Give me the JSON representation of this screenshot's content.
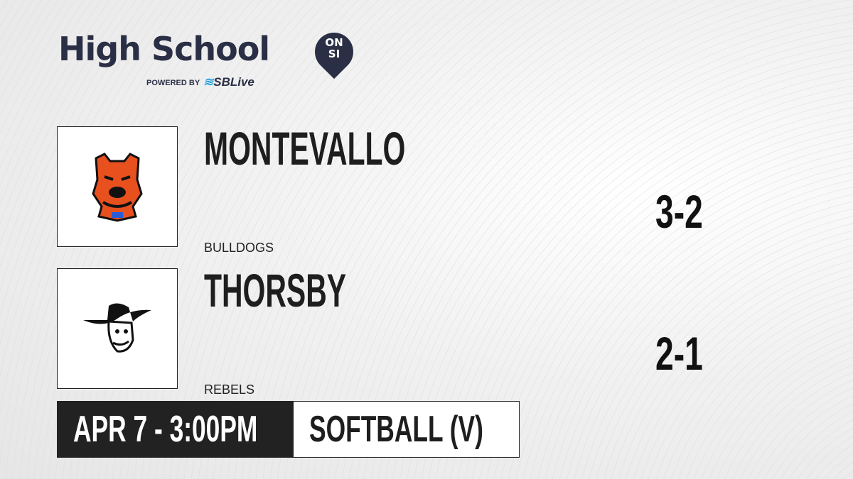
{
  "brand": {
    "title": "High School",
    "badge": "ON SI",
    "powered_by": "POWERED BY",
    "partner": "SBLive"
  },
  "teams": [
    {
      "name": "MONTEVALLO",
      "mascot": "BULLDOGS",
      "score": "3-2",
      "logo_icon": "bulldog-icon"
    },
    {
      "name": "THORSBY",
      "mascot": "REBELS",
      "score": "2-1",
      "logo_icon": "rebel-icon"
    }
  ],
  "game": {
    "datetime": "APR 7 - 3:00PM",
    "sport": "SOFTBALL (V)"
  },
  "colors": {
    "brand": "#2b2f45",
    "partner_accent": "#2aa6e0",
    "bar_dark": "#222222",
    "bulldog": "#e8501e"
  }
}
